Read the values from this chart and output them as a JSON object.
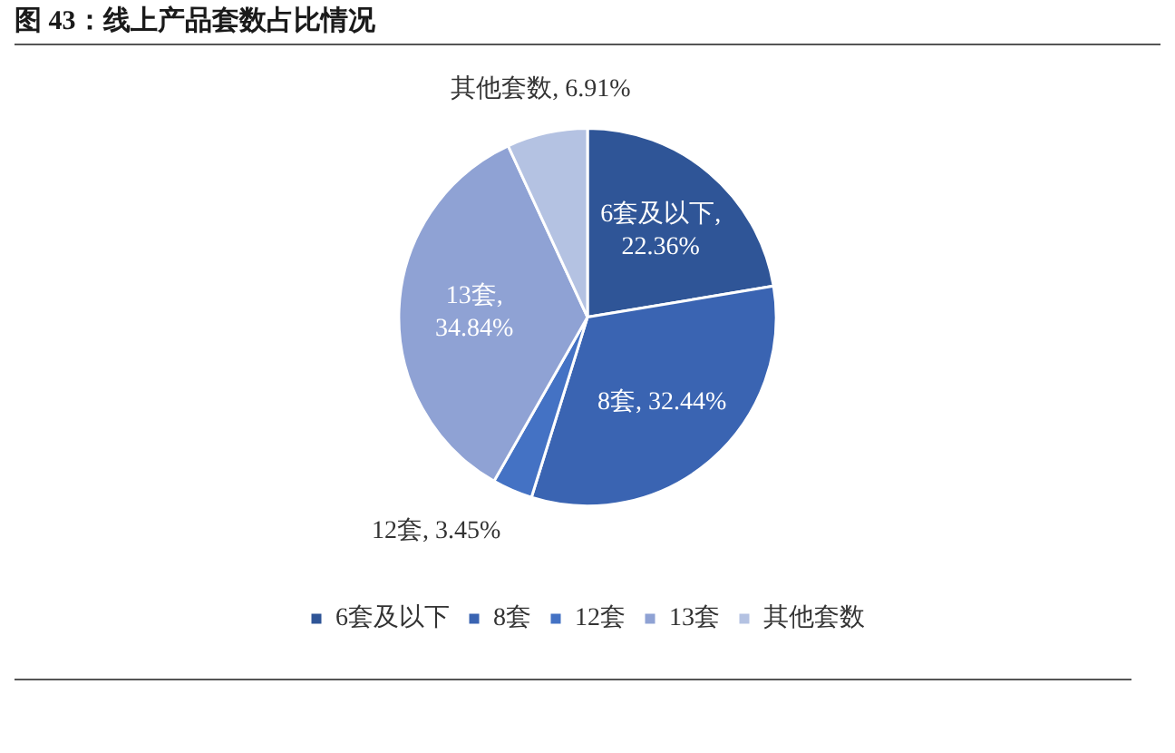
{
  "chart_data": {
    "type": "pie",
    "title": "图 43：线上产品套数占比情况",
    "categories": [
      "6套及以下",
      "8套",
      "12套",
      "13套",
      "其他套数"
    ],
    "values": [
      22.36,
      32.44,
      3.45,
      34.84,
      6.91
    ],
    "value_labels": [
      "6套及以下, 22.36%",
      "8套, 32.44%",
      "12套, 3.45%",
      "13套, 34.84%",
      "其他套数, 6.91%"
    ],
    "colors": [
      "#2f5597",
      "#3a64b2",
      "#4472c4",
      "#8fa2d4",
      "#b4c2e2"
    ],
    "legend": "bottom"
  }
}
